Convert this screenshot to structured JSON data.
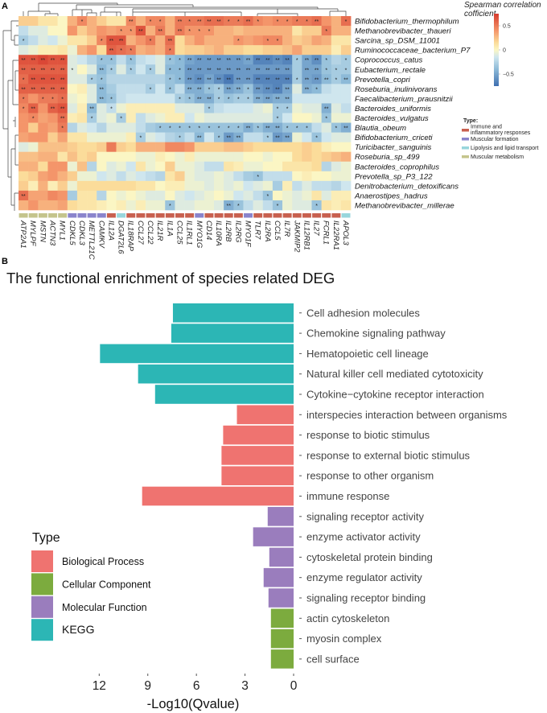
{
  "panel_a_label": "A",
  "panel_b_label": "B",
  "chart_data": [
    {
      "type": "heatmap",
      "title": "",
      "rows": [
        "Bifidobacterium_thermophilum",
        "Methanobrevibacter_thaueri",
        "Sarcina_sp_DSM_11001",
        "Ruminococcaceae_bacterium_P7",
        "Coprococcus_catus",
        "Eubacterium_rectale",
        "Prevotella_copri",
        "Roseburia_inulinivorans",
        "Faecalibacterium_prausnitzii",
        "Bacteroides_uniformis",
        "Bacteroides_vulgatus",
        "Blautia_obeum",
        "Bifidobacterium_criceti",
        "Turicibacter_sanguinis",
        "Roseburia_sp_499",
        "Bacteroides_coprophilus",
        "Prevotella_sp_P3_122",
        "Denitrobacterium_detoxificans",
        "Anaerostipes_hadrus",
        "Methanobrevibacter_millerae"
      ],
      "columns": [
        "ATP2A1",
        "MYLPF",
        "MSTN",
        "ACTN3",
        "MYL1",
        "CDKL5",
        "CDKL3",
        "METTL21C",
        "CAMKV",
        "IL12A",
        "DGAT2L6",
        "IL18RAP",
        "CCL27",
        "CCL22",
        "IL21R",
        "IL1A",
        "CCL25",
        "IL1RL1",
        "MYO1G",
        "CD14",
        "IL10RA",
        "IL2RB",
        "IL2RG",
        "MYO1F",
        "TLR7",
        "IL2RA",
        "CCL5",
        "IL7R",
        "JAKMIP2",
        "IL12RB1",
        "IL27",
        "FCRL1",
        "IL22RA1",
        "APOL3"
      ],
      "column_types": [
        "met",
        "met",
        "met",
        "met",
        "met",
        "form",
        "form",
        "form",
        "form",
        "imm",
        "lip",
        "imm",
        "imm",
        "imm",
        "imm",
        "imm",
        "imm",
        "imm",
        "form",
        "imm",
        "imm",
        "imm",
        "imm",
        "form",
        "imm",
        "imm",
        "imm",
        "imm",
        "imm",
        "imm",
        "imm",
        "imm",
        "imm",
        "lip"
      ],
      "values": [
        [
          0.2,
          0.2,
          0.1,
          0.1,
          0,
          0.3,
          0.45,
          0.3,
          0.2,
          0.1,
          0.1,
          0.45,
          0.3,
          0.45,
          0.45,
          0.3,
          0.5,
          0.5,
          0.5,
          0.55,
          0.55,
          0.5,
          0.5,
          0.55,
          0.45,
          0.4,
          0.45,
          0.45,
          0.5,
          0.5,
          0.55,
          0.4,
          0.3,
          0.55
        ],
        [
          -0.2,
          -0.1,
          -0.1,
          0,
          0,
          0.4,
          0.2,
          0.3,
          0.4,
          0.35,
          0.4,
          0.4,
          0.65,
          0.3,
          0.5,
          0.3,
          0.5,
          0.4,
          0.4,
          0.4,
          0.3,
          0.3,
          0.25,
          0.3,
          0.3,
          0.3,
          0.3,
          0.3,
          0.1,
          0.2,
          0.2,
          0.5,
          0.3,
          0.3
        ],
        [
          -0.3,
          -0.2,
          -0.1,
          -0.15,
          -0.05,
          0.1,
          0.1,
          0.2,
          0.45,
          0.65,
          0.65,
          0.3,
          0.4,
          0.5,
          0.3,
          0.55,
          0.15,
          0.3,
          0.4,
          0.3,
          0.3,
          0.3,
          0.4,
          0.35,
          0.4,
          0.45,
          0.45,
          0.3,
          0.2,
          0.25,
          0.35,
          0.3,
          0.1,
          0.1
        ],
        [
          -0.1,
          -0.05,
          0.05,
          0.05,
          0.1,
          -0.05,
          0.3,
          0.4,
          0.15,
          0.6,
          0.55,
          0.5,
          0.3,
          0.35,
          0.3,
          0.5,
          0.15,
          0.2,
          0.2,
          0.25,
          0.3,
          0.2,
          0.2,
          0.15,
          0.15,
          0.2,
          0.2,
          0.25,
          0.35,
          0.2,
          0.2,
          0.2,
          0.05,
          0.2
        ],
        [
          0.65,
          0.65,
          0.7,
          0.65,
          0.65,
          -0.1,
          -0.15,
          -0.25,
          -0.35,
          -0.35,
          -0.2,
          -0.35,
          -0.2,
          -0.15,
          -0.1,
          -0.35,
          -0.4,
          -0.5,
          -0.55,
          -0.55,
          -0.55,
          -0.55,
          -0.55,
          -0.5,
          -0.65,
          -0.65,
          -0.6,
          -0.65,
          -0.3,
          -0.5,
          -0.6,
          -0.35,
          -0.25,
          -0.3
        ],
        [
          0.6,
          0.6,
          0.6,
          0.6,
          0.6,
          -0.1,
          0,
          -0.1,
          -0.4,
          -0.3,
          -0.1,
          -0.3,
          -0.15,
          -0.3,
          -0.1,
          -0.4,
          -0.4,
          -0.55,
          -0.55,
          -0.55,
          -0.55,
          -0.55,
          -0.55,
          -0.55,
          -0.55,
          -0.55,
          -0.55,
          -0.55,
          -0.3,
          -0.5,
          -0.5,
          -0.35,
          -0.3,
          -0.3
        ],
        [
          0.55,
          0.65,
          0.65,
          0.65,
          0.65,
          -0.1,
          -0.1,
          -0.3,
          -0.35,
          -0.25,
          -0.25,
          -0.25,
          -0.25,
          -0.25,
          -0.25,
          -0.35,
          -0.4,
          -0.55,
          -0.6,
          -0.5,
          -0.6,
          -0.7,
          -0.55,
          -0.55,
          -0.65,
          -0.65,
          -0.65,
          -0.65,
          -0.3,
          -0.5,
          -0.55,
          -0.4,
          -0.3,
          -0.4
        ],
        [
          0.6,
          0.6,
          0.6,
          0.6,
          0.6,
          0,
          0.05,
          -0.1,
          -0.4,
          -0.3,
          -0.2,
          -0.2,
          -0.2,
          -0.3,
          -0.15,
          -0.35,
          -0.2,
          -0.45,
          -0.45,
          -0.35,
          -0.3,
          -0.5,
          -0.45,
          -0.35,
          -0.55,
          -0.6,
          -0.65,
          -0.5,
          -0.1,
          -0.45,
          -0.4,
          -0.2,
          -0.15,
          -0.15
        ],
        [
          0.5,
          0.4,
          0.5,
          0.5,
          0.55,
          -0.05,
          0,
          -0.1,
          -0.4,
          -0.35,
          -0.2,
          -0.15,
          -0.15,
          -0.15,
          -0.15,
          -0.15,
          -0.3,
          -0.35,
          -0.45,
          -0.45,
          -0.3,
          -0.35,
          -0.3,
          -0.3,
          -0.45,
          -0.5,
          -0.45,
          -0.45,
          -0.15,
          -0.15,
          -0.15,
          -0.15,
          -0.15,
          -0.15
        ],
        [
          0.45,
          0.6,
          0.4,
          0.6,
          0.65,
          -0.1,
          0.05,
          -0.4,
          -0.1,
          -0.2,
          -0.05,
          0.05,
          0.05,
          0.05,
          0.05,
          0.05,
          -0.1,
          -0.1,
          -0.1,
          -0.3,
          -0.2,
          -0.15,
          -0.15,
          -0.15,
          -0.1,
          -0.05,
          -0.3,
          -0.3,
          -0.05,
          -0.1,
          -0.1,
          -0.45,
          -0.1,
          -0.2
        ],
        [
          0.4,
          0.45,
          0.35,
          0.4,
          0.55,
          0.05,
          0.1,
          -0.3,
          -0.1,
          -0.05,
          -0.3,
          0.05,
          -0.2,
          -0.1,
          -0.05,
          0.05,
          0.05,
          -0.15,
          -0.05,
          -0.1,
          -0.1,
          -0.1,
          -0.1,
          -0.1,
          -0.1,
          -0.1,
          -0.3,
          -0.15,
          0,
          0,
          -0.05,
          -0.35,
          -0.05,
          -0.05
        ],
        [
          0.4,
          0.2,
          0.4,
          0.35,
          0.5,
          -0.25,
          -0.1,
          -0.15,
          -0.25,
          -0.1,
          -0.1,
          -0.1,
          -0.2,
          -0.3,
          -0.35,
          -0.35,
          -0.35,
          -0.35,
          -0.35,
          -0.35,
          -0.35,
          -0.35,
          -0.35,
          -0.45,
          -0.35,
          -0.45,
          -0.45,
          -0.35,
          -0.35,
          -0.35,
          -0.2,
          -0.1,
          -0.35,
          -0.45
        ],
        [
          0.35,
          0.4,
          0.4,
          0.2,
          0.35,
          0.1,
          0.1,
          -0.05,
          -0.05,
          -0.05,
          -0.05,
          0.05,
          -0.3,
          -0.1,
          -0.15,
          -0.25,
          -0.3,
          -0.2,
          -0.4,
          -0.15,
          -0.35,
          -0.55,
          -0.45,
          -0.2,
          -0.2,
          -0.3,
          -0.55,
          -0.5,
          -0.05,
          -0.15,
          -0.35,
          -0.15,
          -0.1,
          -0.1
        ],
        [
          -0.1,
          -0.05,
          0.25,
          0.25,
          0.25,
          0.2,
          0.15,
          0.15,
          0.2,
          0.5,
          0.2,
          0.15,
          0.3,
          0.3,
          0.3,
          0.45,
          0.45,
          0.4,
          0.2,
          0.2,
          0.2,
          0.25,
          0.25,
          0.2,
          0.15,
          0.15,
          0.15,
          0.15,
          0.15,
          0.2,
          0.15,
          0.05,
          0,
          0
        ],
        [
          0.25,
          0.25,
          0.3,
          0.3,
          0.1,
          0.25,
          0.15,
          0.2,
          0,
          0,
          0,
          0,
          -0.05,
          -0.05,
          0.05,
          0,
          -0.05,
          0.05,
          -0.05,
          -0.05,
          -0.05,
          -0.05,
          -0.05,
          0,
          0,
          -0.05,
          0,
          0,
          0.15,
          0.2,
          0.15,
          0.2,
          0.25,
          0.3
        ],
        [
          0.3,
          0.3,
          0.15,
          0.4,
          0.4,
          -0.05,
          0.25,
          -0.25,
          0,
          -0.1,
          -0.05,
          -0.15,
          0.1,
          -0.05,
          0,
          0.2,
          -0.05,
          -0.05,
          -0.1,
          -0.2,
          -0.2,
          0.1,
          0.05,
          -0.05,
          -0.05,
          0,
          0,
          0.1,
          0.1,
          0.1,
          0.15,
          -0.25,
          -0.1,
          -0.05
        ],
        [
          0.15,
          0.2,
          0.35,
          0.4,
          0.3,
          0.2,
          -0.05,
          -0.05,
          -0.15,
          -0.1,
          -0.2,
          -0.1,
          -0.15,
          -0.2,
          -0.25,
          0.1,
          0.2,
          -0.05,
          -0.1,
          -0.1,
          -0.05,
          -0.1,
          -0.2,
          -0.3,
          -0.35,
          -0.2,
          -0.2,
          -0.2,
          0,
          0.05,
          0,
          0,
          -0.05,
          -0.05
        ],
        [
          0.2,
          0.05,
          0.3,
          0.05,
          0.2,
          -0.05,
          0.15,
          0.15,
          0.15,
          0.15,
          0.15,
          0.15,
          0.1,
          0.1,
          0,
          0.05,
          0.05,
          -0.05,
          -0.05,
          -0.1,
          -0.05,
          -0.1,
          -0.05,
          -0.15,
          -0.1,
          -0.05,
          -0.3,
          0.05,
          -0.2,
          -0.1,
          -0.2,
          -0.2,
          -0.25,
          -0.15
        ],
        [
          0.55,
          0.35,
          0.35,
          0.45,
          0.4,
          -0.3,
          0.1,
          0.1,
          -0.25,
          0,
          -0.05,
          0,
          -0.05,
          -0.1,
          -0.1,
          0,
          -0.1,
          -0.15,
          -0.1,
          -0.05,
          0,
          -0.05,
          -0.15,
          -0.1,
          -0.2,
          -0.35,
          0,
          -0.05,
          -0.1,
          -0.05,
          0.1,
          -0.1,
          0.05,
          0.05
        ],
        [
          0.3,
          0.4,
          0.3,
          0.3,
          0.35,
          0.15,
          0.1,
          0.1,
          0.05,
          0,
          0.05,
          -0.05,
          0.05,
          -0.05,
          -0.05,
          -0.35,
          -0.1,
          -0.1,
          -0.05,
          -0.05,
          -0.1,
          -0.45,
          -0.35,
          -0.2,
          -0.1,
          -0.2,
          -0.35,
          -0.05,
          -0.1,
          -0.1,
          -0.35,
          0.1,
          0.05,
          0.1
        ]
      ],
      "significance": [
        "0000001000020110212221121011112001",
        "0000000000112020211100000000000100",
        "1000000012200102000000100110000000",
        "0000000002110001000000000000000000",
        "2222200011010001122222222222122101",
        "2222210021010101122222222222022111",
        "1222200110000001122222222222122212",
        "2222200020000101022112212222021000",
        "1011100021000000112211112222000000",
        "1202200201000000000100000011000200",
        "0100200100100000000000000010000100",
        "0000100000000011111111121221110012",
        "0000000000001000102012200122001000",
        "0000000000000000000000000000000000",
        "0000000000000000000000000000000000",
        "0000000000000000000000000000000000",
        "0000000000000000000000001000000000",
        "0000000000000000000000000000000000",
        "2000000000000000000000000100000000",
        "0000000000000001000002100010001000"
      ],
      "significance_marks": {
        "1": "*",
        "2": "**"
      },
      "colorbar": {
        "title_line1": "Spearman correlation",
        "title_line2": "cofficient",
        "range": [
          -0.75,
          0.75
        ],
        "ticks": [
          {
            "value": 0.5,
            "label": "0.5"
          },
          {
            "value": 0,
            "label": "0"
          },
          {
            "value": -0.5,
            "label": "−0.5"
          }
        ]
      },
      "type_legend": {
        "title": "Type:",
        "items": [
          {
            "key": "imm",
            "label_line1": "Immune and",
            "label_line2": "inflammatory responses",
            "color": "#c8604f"
          },
          {
            "key": "form",
            "label_line1": "Muscular formation",
            "label_line2": "",
            "color": "#8a84cc"
          },
          {
            "key": "lip",
            "label_line1": "Lipolysis and lipid transport",
            "label_line2": "",
            "color": "#98d6dc"
          },
          {
            "key": "met",
            "label_line1": "Muscular metabolism",
            "label_line2": "",
            "color": "#c4c48c"
          }
        ]
      }
    },
    {
      "type": "bar",
      "orientation": "horizontal",
      "title": "The functional enrichment of species related DEG",
      "xlabel": "-Log10(Qvalue)",
      "ylabel": "",
      "xlim": [
        12.2,
        0
      ],
      "xticks": [
        12,
        9,
        6,
        3,
        0
      ],
      "categories": [
        "Cell adhesion molecules",
        "Chemokine signaling pathway",
        "Hematopoietic cell lineage",
        "Natural killer cell mediated cytotoxicity",
        "Cytokine−cytokine receptor interaction",
        "interspecies interaction between organisms",
        "response to biotic stimulus",
        "response to external biotic stimulus",
        "response to other organism",
        "immune response",
        "signaling receptor activity",
        "enzyme activator activity",
        "cytoskeletal protein binding",
        "enzyme regulator activity",
        "signaling receptor binding",
        "actin cytoskeleton",
        "myosin complex",
        "cell surface"
      ],
      "values": [
        7.45,
        7.55,
        11.95,
        9.6,
        8.55,
        3.5,
        4.35,
        4.45,
        4.45,
        9.35,
        1.6,
        2.5,
        1.5,
        1.85,
        1.55,
        1.4,
        1.4,
        1.4
      ],
      "types": [
        "KEGG",
        "KEGG",
        "KEGG",
        "KEGG",
        "KEGG",
        "Biological Process",
        "Biological Process",
        "Biological Process",
        "Biological Process",
        "Biological Process",
        "Molecular Function",
        "Molecular Function",
        "Molecular Function",
        "Molecular Function",
        "Molecular Function",
        "Cellular Component",
        "Cellular Component",
        "Cellular Component"
      ],
      "legend": {
        "title": "Type",
        "placement": "bottom-left",
        "items": [
          {
            "label": "Biological Process",
            "color": "#ef7370"
          },
          {
            "label": "Cellular Component",
            "color": "#7cab3e"
          },
          {
            "label": "Molecular Function",
            "color": "#9a7dbd"
          },
          {
            "label": "KEGG",
            "color": "#2cb6b5"
          }
        ]
      }
    }
  ]
}
